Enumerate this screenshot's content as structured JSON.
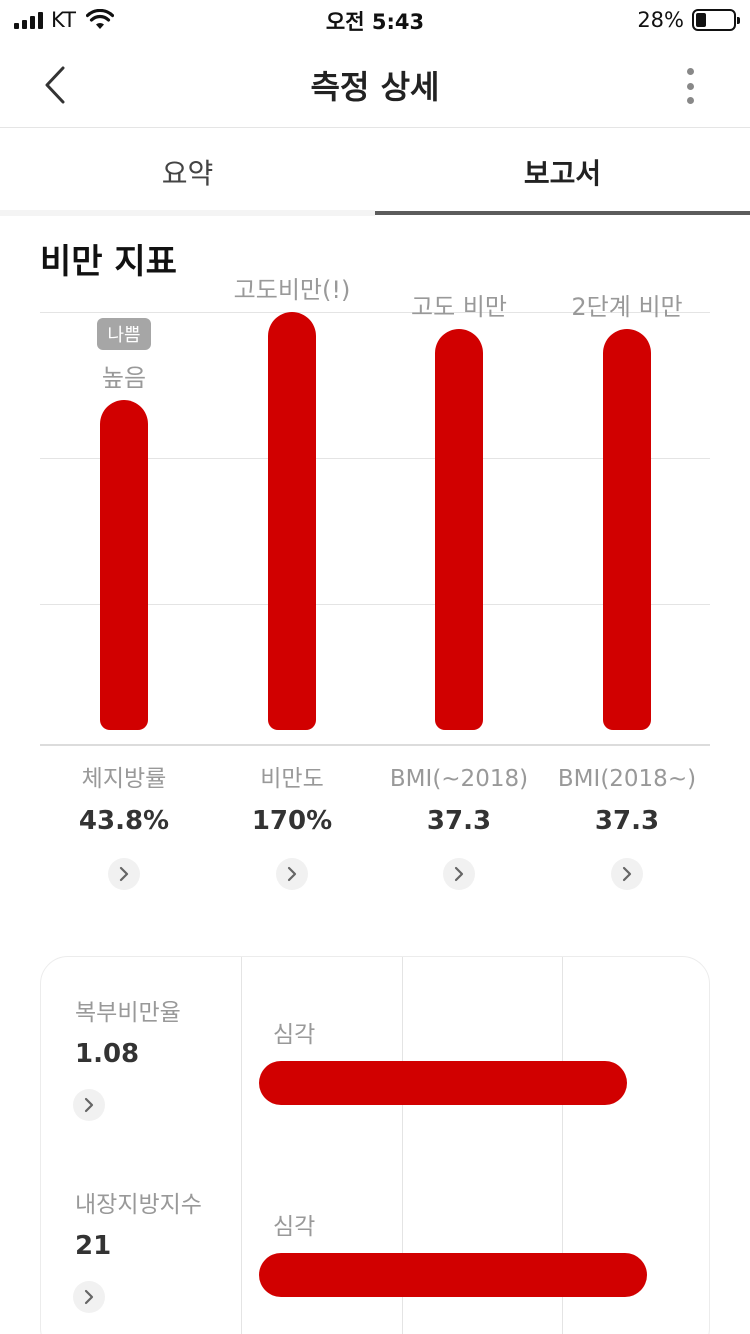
{
  "status_bar": {
    "carrier": "KT",
    "time": "오전 5:43",
    "battery_percent": "28%",
    "battery_level": 0.28
  },
  "nav": {
    "title": "측정 상세",
    "back_icon": "chevron-left-icon",
    "more_icon": "more-vertical-icon"
  },
  "tabs": [
    {
      "label": "요약",
      "active": false
    },
    {
      "label": "보고서",
      "active": true
    }
  ],
  "section": {
    "title": "비만 지표"
  },
  "colors": {
    "bar": "#d10000",
    "badge": "#a6a6a6",
    "tab_indicator": "#5c5c5c"
  },
  "chart_data": {
    "type": "bar",
    "categories": [
      "체지방률",
      "비만도",
      "BMI(~2018)",
      "BMI(2018~)"
    ],
    "values": [
      43.8,
      170,
      37.3,
      37.3
    ],
    "value_labels": [
      "43.8%",
      "170%",
      "37.3",
      "37.3"
    ],
    "status_labels": [
      "높음",
      "고도비만(!)",
      "고도 비만",
      "2단계 비만"
    ],
    "fill_levels": [
      0.79,
      1.0,
      0.96,
      0.96
    ],
    "badge": {
      "index": 0,
      "label": "나쁨"
    },
    "grid": true
  },
  "card": {
    "rows": [
      {
        "name": "복부비만율",
        "value": "1.08",
        "status": "심각",
        "fill_level": 0.92
      },
      {
        "name": "내장지방지수",
        "value": "21",
        "status": "심각",
        "fill_level": 0.97
      }
    ]
  }
}
